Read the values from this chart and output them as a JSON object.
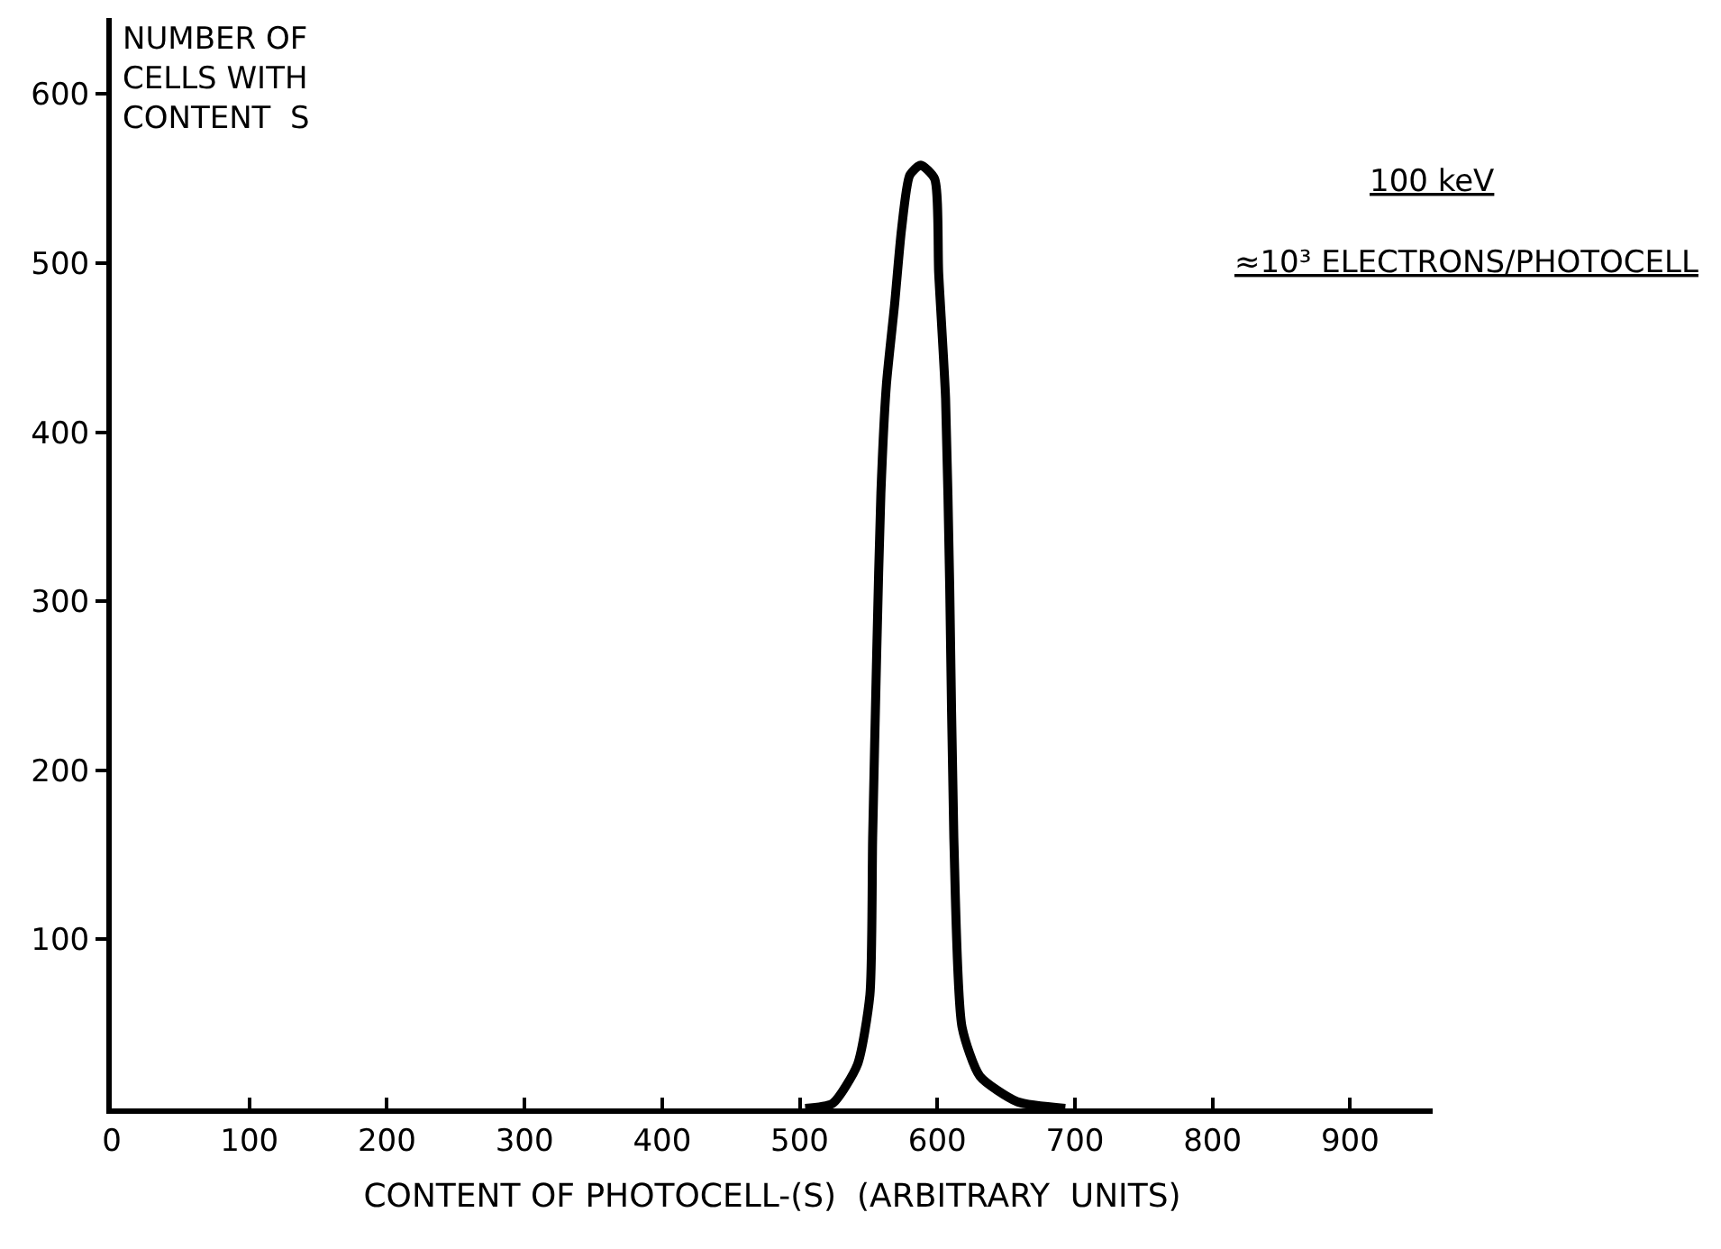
{
  "chart_data": {
    "type": "line",
    "ylabel": "NUMBER OF\nCELLS WITH\nCONTENT  S",
    "xlabel": "CONTENT OF PHOTOCELL-(S)  (ARBITRARY  UNITS)",
    "annotations": [
      "100 keV",
      "≈10³ ELECTRONS/PHOTOCELL"
    ],
    "series": [
      {
        "color": "#000000",
        "x": [
          504,
          524,
          542,
          551,
          553,
          556,
          559,
          563,
          569,
          574,
          580,
          588,
          598,
          601,
          606,
          609,
          612,
          618,
          631,
          658,
          693
        ],
        "values": [
          0,
          3,
          26,
          67,
          160,
          271,
          364,
          428,
          476,
          520,
          552,
          558,
          550,
          494,
          420,
          309,
          160,
          48,
          19,
          4,
          0
        ]
      }
    ],
    "xlim": [
      0,
      960
    ],
    "xticks": [
      0,
      100,
      200,
      300,
      400,
      500,
      600,
      700,
      800,
      900
    ],
    "ylim": [
      0,
      645
    ],
    "yticks": [
      100,
      200,
      300,
      400,
      500,
      600
    ],
    "legend": false,
    "marker": "none",
    "line_style": "solid"
  }
}
